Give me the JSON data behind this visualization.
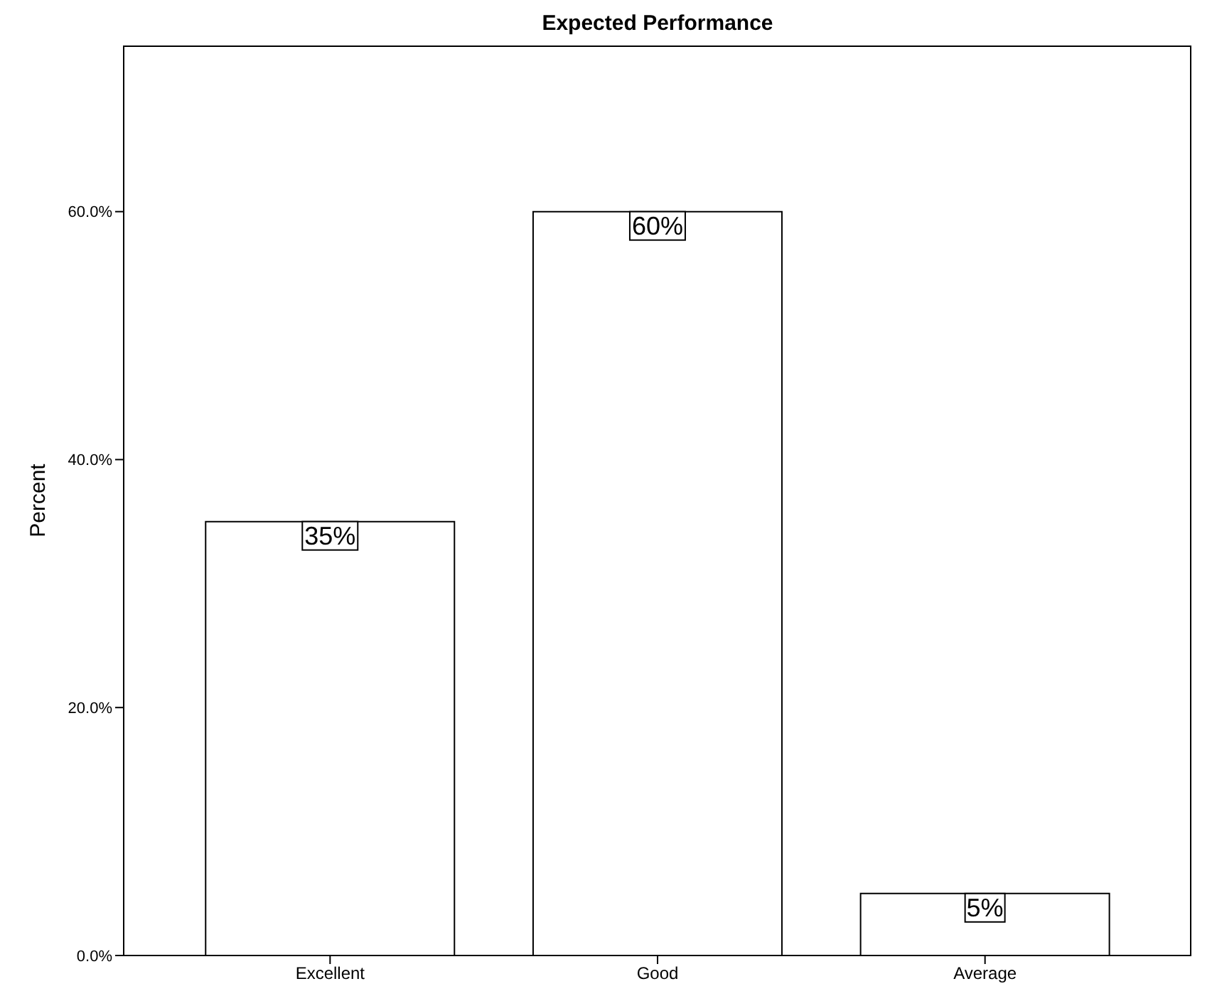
{
  "chart_data": {
    "type": "bar",
    "title": "Expected Performance",
    "ylabel": "Percent",
    "categories": [
      "Excellent",
      "Good",
      "Average"
    ],
    "values": [
      35,
      60,
      5
    ],
    "value_labels": [
      "35%",
      "60%",
      "5%"
    ],
    "color": "#ffffff",
    "ylim": [
      0,
      73.4
    ],
    "yticks": [
      {
        "value": 0,
        "label": "0.0%"
      },
      {
        "value": 20,
        "label": "20.0%"
      },
      {
        "value": 40,
        "label": "40.0%"
      },
      {
        "value": 60,
        "label": "60.0%"
      }
    ],
    "grid": false
  }
}
